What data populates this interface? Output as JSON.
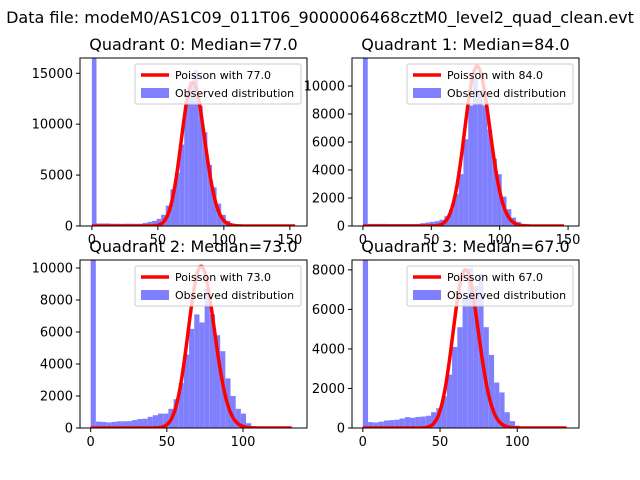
{
  "figure": {
    "suptitle": "Data file: modeM0/AS1C09_011T06_9000006468cztM0_level2_quad_clean.evt"
  },
  "colors": {
    "poisson": "#ff0000",
    "observed": "#8080ff",
    "axes": "#000000",
    "legend_border": "#cccccc"
  },
  "chart_data": [
    {
      "type": "bar",
      "title": "Quadrant 0: Median=77.0",
      "xlim": [
        -9,
        163
      ],
      "ylim": [
        0,
        16500
      ],
      "xticks": [
        0,
        50,
        100,
        150
      ],
      "yticks": [
        0,
        5000,
        10000,
        15000
      ],
      "bin_width": 3.5,
      "bins": [
        [
          0,
          16500
        ],
        [
          3.5,
          250
        ],
        [
          7,
          250
        ],
        [
          10.5,
          250
        ],
        [
          14,
          230
        ],
        [
          17.5,
          230
        ],
        [
          21,
          220
        ],
        [
          24.5,
          230
        ],
        [
          28,
          230
        ],
        [
          31.5,
          220
        ],
        [
          35,
          220
        ],
        [
          38.5,
          300
        ],
        [
          42,
          400
        ],
        [
          45.5,
          500
        ],
        [
          49,
          700
        ],
        [
          52.5,
          1100
        ],
        [
          56,
          2000
        ],
        [
          59.5,
          3600
        ],
        [
          63,
          5200
        ],
        [
          66.5,
          8000
        ],
        [
          70,
          12300
        ],
        [
          73.5,
          14200
        ],
        [
          77,
          15300
        ],
        [
          80.5,
          11800
        ],
        [
          84,
          9200
        ],
        [
          87.5,
          6000
        ],
        [
          91,
          3800
        ],
        [
          94.5,
          2200
        ],
        [
          98,
          1100
        ],
        [
          101.5,
          500
        ],
        [
          105,
          250
        ],
        [
          108.5,
          120
        ],
        [
          112,
          60
        ],
        [
          115.5,
          40
        ],
        [
          119,
          25
        ],
        [
          122.5,
          15
        ],
        [
          126,
          10
        ],
        [
          129.5,
          8
        ],
        [
          133,
          6
        ],
        [
          136.5,
          5
        ],
        [
          140,
          4
        ],
        [
          143.5,
          3
        ],
        [
          147,
          2
        ],
        [
          150.5,
          2
        ],
        [
          154,
          1
        ]
      ],
      "poisson": {
        "label": "Poisson with 77.0",
        "mean": 77.0,
        "peak": 14100,
        "x_range": [
          0,
          154
        ]
      },
      "legend": {
        "poisson": "Poisson with 77.0",
        "observed": "Observed distribution",
        "location": "upper right"
      }
    },
    {
      "type": "bar",
      "title": "Quadrant 1: Median=84.0",
      "xlim": [
        -8,
        158
      ],
      "ylim": [
        0,
        12000
      ],
      "xticks": [
        0,
        50,
        100,
        150
      ],
      "yticks": [
        0,
        2000,
        4000,
        6000,
        8000,
        10000
      ],
      "bin_width": 3.5,
      "bins": [
        [
          0,
          12000
        ],
        [
          3.5,
          150
        ],
        [
          7,
          150
        ],
        [
          10.5,
          150
        ],
        [
          14,
          150
        ],
        [
          17.5,
          140
        ],
        [
          21,
          140
        ],
        [
          24.5,
          140
        ],
        [
          28,
          140
        ],
        [
          31.5,
          140
        ],
        [
          35,
          140
        ],
        [
          38.5,
          150
        ],
        [
          42,
          200
        ],
        [
          45.5,
          250
        ],
        [
          49,
          300
        ],
        [
          52.5,
          350
        ],
        [
          56,
          450
        ],
        [
          59.5,
          700
        ],
        [
          63,
          1200
        ],
        [
          66.5,
          2300
        ],
        [
          70,
          3700
        ],
        [
          73.5,
          6200
        ],
        [
          77,
          8600
        ],
        [
          80.5,
          10500
        ],
        [
          84,
          9700
        ],
        [
          87.5,
          8600
        ],
        [
          91,
          6900
        ],
        [
          94.5,
          4800
        ],
        [
          98,
          3700
        ],
        [
          101.5,
          2100
        ],
        [
          105,
          1200
        ],
        [
          108.5,
          600
        ],
        [
          112,
          300
        ],
        [
          115.5,
          150
        ],
        [
          119,
          80
        ],
        [
          122.5,
          40
        ],
        [
          126,
          20
        ],
        [
          129.5,
          10
        ],
        [
          133,
          8
        ],
        [
          136.5,
          5
        ],
        [
          140,
          3
        ],
        [
          143.5,
          2
        ]
      ],
      "poisson": {
        "label": "Poisson with 84.0",
        "mean": 84.0,
        "peak": 11400,
        "x_range": [
          0,
          147
        ]
      },
      "legend": {
        "poisson": "Poisson with 84.0",
        "observed": "Observed distribution",
        "location": "upper right"
      }
    },
    {
      "type": "bar",
      "title": "Quadrant 2: Median=73.0",
      "xlim": [
        -7,
        142
      ],
      "ylim": [
        0,
        10500
      ],
      "xticks": [
        0,
        50,
        100
      ],
      "yticks": [
        0,
        2000,
        4000,
        6000,
        8000,
        10000
      ],
      "bin_width": 3.4,
      "bins": [
        [
          0,
          10500
        ],
        [
          3.4,
          400
        ],
        [
          6.8,
          380
        ],
        [
          10.2,
          350
        ],
        [
          13.6,
          380
        ],
        [
          17,
          420
        ],
        [
          20.4,
          420
        ],
        [
          23.8,
          430
        ],
        [
          27.2,
          500
        ],
        [
          30.6,
          560
        ],
        [
          34,
          580
        ],
        [
          37.4,
          700
        ],
        [
          40.8,
          800
        ],
        [
          44.2,
          900
        ],
        [
          47.6,
          900
        ],
        [
          51,
          1200
        ],
        [
          54.4,
          1800
        ],
        [
          57.8,
          2800
        ],
        [
          61.2,
          4600
        ],
        [
          64.6,
          6200
        ],
        [
          68,
          7100
        ],
        [
          71.4,
          6600
        ],
        [
          74.8,
          8700
        ],
        [
          78.2,
          7100
        ],
        [
          81.6,
          5800
        ],
        [
          85,
          4800
        ],
        [
          88.4,
          3100
        ],
        [
          91.8,
          2000
        ],
        [
          95.2,
          1200
        ],
        [
          98.6,
          900
        ],
        [
          102,
          300
        ],
        [
          105.4,
          120
        ],
        [
          108.8,
          60
        ],
        [
          112.2,
          30
        ],
        [
          115.6,
          20
        ],
        [
          119,
          12
        ],
        [
          122.4,
          8
        ],
        [
          125.8,
          5
        ],
        [
          129.2,
          3
        ]
      ],
      "poisson": {
        "label": "Poisson with 73.0",
        "mean": 73.0,
        "peak": 10100,
        "x_range": [
          0,
          132
        ]
      },
      "legend": {
        "poisson": "Poisson with 73.0",
        "observed": "Observed distribution",
        "location": "upper right"
      }
    },
    {
      "type": "bar",
      "title": "Quadrant 3: Median=67.0",
      "xlim": [
        -7,
        140
      ],
      "ylim": [
        0,
        8500
      ],
      "xticks": [
        0,
        50,
        100
      ],
      "yticks": [
        0,
        2000,
        4000,
        6000,
        8000
      ],
      "bin_width": 3.4,
      "bins": [
        [
          0,
          8500
        ],
        [
          3.4,
          300
        ],
        [
          6.8,
          280
        ],
        [
          10.2,
          320
        ],
        [
          13.6,
          380
        ],
        [
          17,
          400
        ],
        [
          20.4,
          420
        ],
        [
          23.8,
          480
        ],
        [
          27.2,
          550
        ],
        [
          30.6,
          520
        ],
        [
          34,
          560
        ],
        [
          37.4,
          580
        ],
        [
          40.8,
          620
        ],
        [
          44.2,
          800
        ],
        [
          47.6,
          1000
        ],
        [
          51,
          1600
        ],
        [
          54.4,
          2700
        ],
        [
          57.8,
          4100
        ],
        [
          61.2,
          5100
        ],
        [
          64.6,
          6600
        ],
        [
          68,
          8100
        ],
        [
          71.4,
          7200
        ],
        [
          74.8,
          7800
        ],
        [
          78.2,
          5100
        ],
        [
          81.6,
          3700
        ],
        [
          85,
          2300
        ],
        [
          88.4,
          1800
        ],
        [
          91.8,
          800
        ],
        [
          95.2,
          350
        ],
        [
          98.6,
          120
        ],
        [
          102,
          60
        ],
        [
          105.4,
          30
        ],
        [
          108.8,
          15
        ],
        [
          112.2,
          10
        ],
        [
          115.6,
          6
        ],
        [
          119,
          4
        ],
        [
          122.4,
          3
        ],
        [
          125.8,
          2
        ]
      ],
      "poisson": {
        "label": "Poisson with 67.0",
        "mean": 67.0,
        "peak": 8000,
        "x_range": [
          0,
          132
        ]
      },
      "legend": {
        "poisson": "Poisson with 67.0",
        "observed": "Observed distribution",
        "location": "upper right"
      }
    }
  ]
}
